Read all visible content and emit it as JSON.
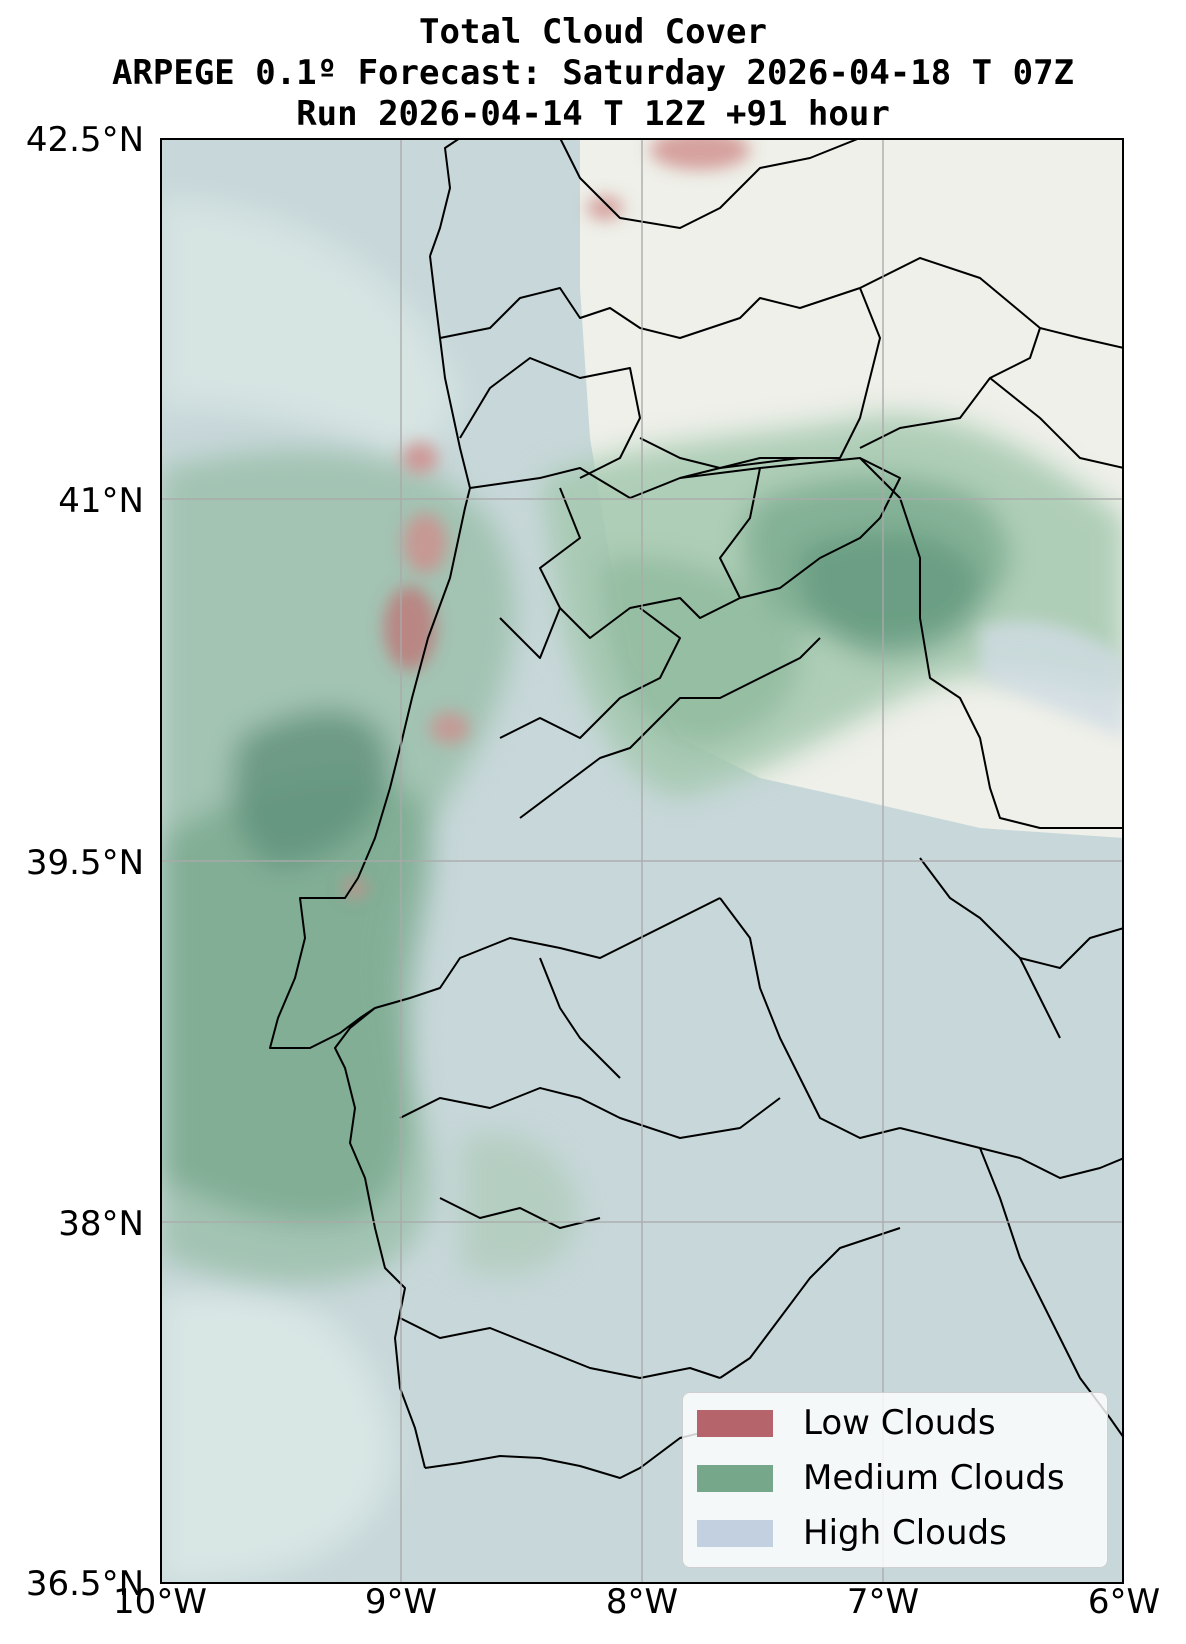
{
  "title": {
    "line1": "Total Cloud Cover",
    "line2": "ARPEGE 0.1º Forecast: Saturday 2026-04-18 T 07Z",
    "line3": "Run 2026-04-14 T 12Z +91 hour"
  },
  "axes": {
    "lat_ticks": [
      "42.5°N",
      "41°N",
      "39.5°N",
      "38°N",
      "36.5°N"
    ],
    "lon_ticks": [
      "10°W",
      "9°W",
      "8°W",
      "7°W",
      "6°W"
    ],
    "lat_range": [
      36.5,
      42.5
    ],
    "lon_range": [
      -10,
      -6
    ],
    "grid": true
  },
  "legend": {
    "placement": "bottom-right",
    "items": [
      {
        "label": "Low Clouds",
        "color": "#b5646b"
      },
      {
        "label": "Medium Clouds",
        "color": "#77a78b"
      },
      {
        "label": "High Clouds",
        "color": "#c3d0df"
      }
    ]
  },
  "colors": {
    "low": "#b5646b",
    "medium": "#77a78b",
    "high": "#c3d0df",
    "land_clear": "#eef0e9",
    "boundary": "#000000",
    "gridline": "#aaaaaa"
  }
}
